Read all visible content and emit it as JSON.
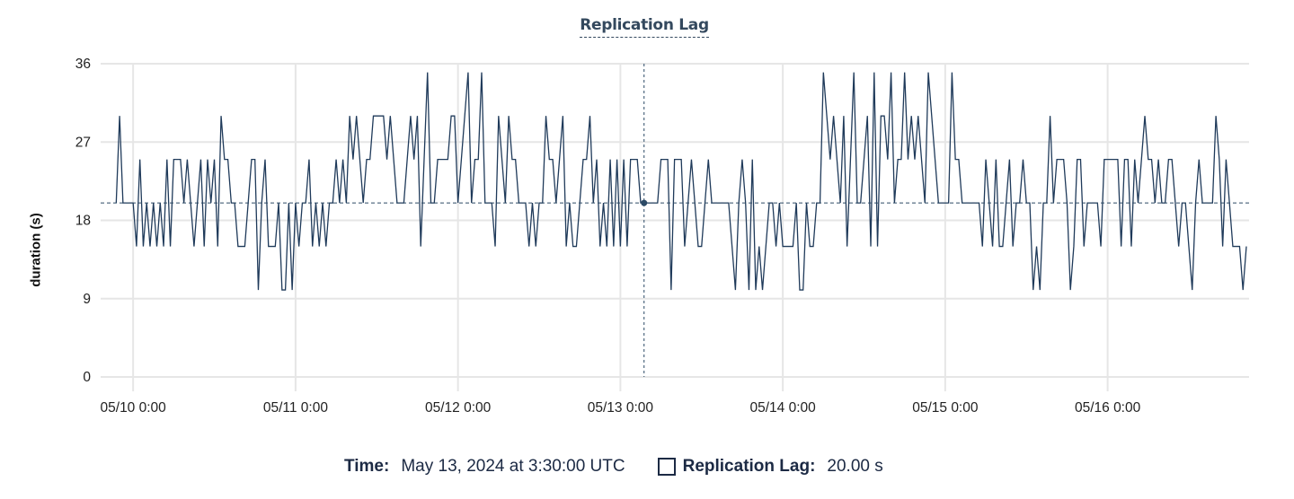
{
  "chart_data": {
    "type": "line",
    "title": "Replication Lag",
    "xlabel": "",
    "ylabel": "duration (s)",
    "ylim": [
      0,
      36
    ],
    "yticks": [
      0,
      9,
      18,
      27,
      36
    ],
    "xlim": [
      "2024-05-09 19:12",
      "2024-05-16 20:54"
    ],
    "xticks": [
      {
        "t": "2024-05-10 00:00",
        "label": "05/10 0:00"
      },
      {
        "t": "2024-05-11 00:00",
        "label": "05/11 0:00"
      },
      {
        "t": "2024-05-12 00:00",
        "label": "05/12 0:00"
      },
      {
        "t": "2024-05-13 00:00",
        "label": "05/13 0:00"
      },
      {
        "t": "2024-05-14 00:00",
        "label": "05/14 0:00"
      },
      {
        "t": "2024-05-15 00:00",
        "label": "05/15 0:00"
      },
      {
        "t": "2024-05-16 00:00",
        "label": "05/16 0:00"
      }
    ],
    "grid": true,
    "line_color": "#1f3a5a",
    "series": [
      {
        "name": "Replication Lag",
        "x_start": "2024-05-09 21:30",
        "interval_minutes": 30,
        "values": [
          20,
          30,
          20,
          20,
          20,
          20,
          15,
          25,
          15,
          20,
          15,
          20,
          15,
          20,
          15,
          25,
          15,
          25,
          25,
          25,
          20,
          25,
          20,
          15,
          20,
          25,
          15,
          25,
          20,
          25,
          15,
          30,
          25,
          25,
          20,
          20,
          15,
          15,
          15,
          20,
          25,
          25,
          10,
          20,
          25,
          15,
          15,
          15,
          20,
          10,
          10,
          20,
          10,
          20,
          15,
          20,
          20,
          25,
          15,
          20,
          15,
          20,
          15,
          20,
          20,
          25,
          20,
          25,
          20,
          30,
          25,
          30,
          25,
          20,
          25,
          25,
          30,
          30,
          30,
          30,
          25,
          30,
          25,
          20,
          20,
          20,
          25,
          30,
          25,
          30,
          15,
          25,
          35,
          20,
          20,
          25,
          25,
          25,
          25,
          30,
          30,
          20,
          25,
          30,
          35,
          20,
          25,
          25,
          35,
          20,
          20,
          20,
          15,
          30,
          25,
          20,
          30,
          25,
          25,
          20,
          20,
          20,
          15,
          20,
          15,
          20,
          20,
          30,
          25,
          25,
          20,
          25,
          30,
          15,
          20,
          15,
          15,
          20,
          25,
          25,
          30,
          20,
          25,
          15,
          20,
          15,
          25,
          15,
          25,
          15,
          25,
          15,
          25,
          25,
          25,
          20,
          20,
          20,
          20,
          20,
          20,
          25,
          25,
          25,
          10,
          25,
          25,
          25,
          15,
          20,
          25,
          20,
          15,
          15,
          20,
          25,
          20,
          20,
          20,
          20,
          20,
          20,
          15,
          10,
          20,
          25,
          20,
          10,
          25,
          10,
          15,
          10,
          15,
          20,
          20,
          15,
          20,
          15,
          15,
          15,
          15,
          20,
          10,
          10,
          20,
          15,
          15,
          20,
          20,
          35,
          30,
          25,
          30,
          25,
          20,
          30,
          15,
          25,
          35,
          20,
          20,
          25,
          30,
          15,
          35,
          15,
          30,
          30,
          25,
          35,
          20,
          25,
          25,
          35,
          25,
          30,
          25,
          30,
          25,
          20,
          35,
          30,
          25,
          20,
          20,
          20,
          20,
          35,
          25,
          25,
          20,
          20,
          20,
          20,
          20,
          20,
          15,
          25,
          20,
          15,
          25,
          15,
          15,
          20,
          25,
          15,
          20,
          20,
          25,
          20,
          20,
          10,
          15,
          10,
          20,
          20,
          30,
          20,
          25,
          25,
          25,
          20,
          10,
          15,
          25,
          25,
          15,
          20,
          20,
          20,
          20,
          15,
          25,
          25,
          25,
          25,
          25,
          15,
          25,
          25,
          15,
          25,
          20,
          25,
          30,
          25,
          25,
          20,
          25,
          20,
          20,
          25,
          25,
          20,
          15,
          20,
          20,
          15,
          10,
          20,
          25,
          20,
          20,
          20,
          20,
          30,
          25,
          15,
          25,
          20,
          15,
          15,
          15,
          10,
          15
        ]
      }
    ],
    "hover": {
      "t": "2024-05-13 03:30",
      "value": 20
    }
  },
  "tooltip": {
    "time_label": "Time:",
    "time_value": "May 13, 2024 at 3:30:00 UTC",
    "series_label": "Replication Lag:",
    "series_value": "20.00 s"
  }
}
